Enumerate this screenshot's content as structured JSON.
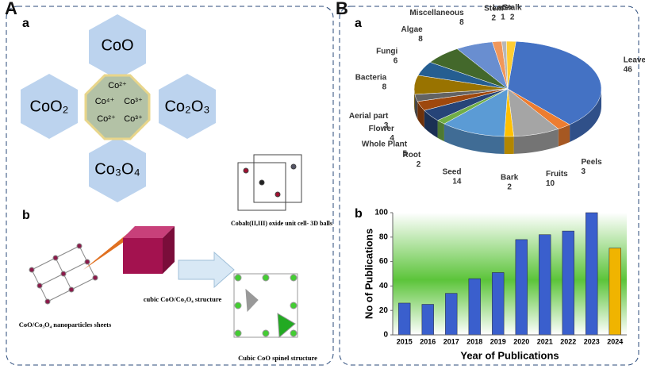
{
  "diagram": {
    "panel_labels": [
      "A",
      "B"
    ],
    "a": {
      "label": "a",
      "center_ions": [
        "Co²⁺",
        "Co⁴⁺",
        "Co³⁺",
        "Co²⁺",
        "Co³⁺"
      ],
      "oxides": [
        "CoO",
        "CoO₂",
        "Co₂O₃",
        "Co₃O₄"
      ]
    },
    "b": {
      "label": "b",
      "unit_cell": "Cobalt(II,III) oxide unit cell- 3D balls",
      "cube": "cubic CoO/Co₃O₄ structure",
      "sheets": "CoO/Co₃O₄ nanoparticles sheets",
      "spinel": "Cubic CoO spinel structure"
    }
  },
  "chart_data": [
    {
      "type": "pie",
      "label": "a",
      "categories": [
        "Leaves",
        "Peels",
        "Fruits",
        "Bark",
        "Seed",
        "Root",
        "Whole Plant",
        "Flower",
        "Aerial part",
        "Bacteria",
        "Fungi",
        "Algae",
        "Miscellaneous",
        "Stem",
        "Latex",
        "Stalk"
      ],
      "values": [
        46,
        3,
        10,
        2,
        14,
        2,
        5,
        4,
        3,
        8,
        6,
        8,
        8,
        2,
        1,
        2
      ],
      "colors": [
        "#4472c4",
        "#ed7d31",
        "#a5a5a5",
        "#ffc000",
        "#5b9bd5",
        "#70ad47",
        "#264478",
        "#9e480e",
        "#636363",
        "#997300",
        "#255e91",
        "#43682b",
        "#698ed0",
        "#f1975a",
        "#b7b7b7",
        "#ffcd33"
      ]
    },
    {
      "type": "bar",
      "label": "b",
      "categories": [
        "2015",
        "2016",
        "2017",
        "2018",
        "2019",
        "2020",
        "2021",
        "2022",
        "2023",
        "2024"
      ],
      "values": [
        26,
        25,
        34,
        46,
        51,
        78,
        82,
        85,
        100,
        71
      ],
      "colors": [
        "#3a5fcd",
        "#3a5fcd",
        "#3a5fcd",
        "#3a5fcd",
        "#3a5fcd",
        "#3a5fcd",
        "#3a5fcd",
        "#3a5fcd",
        "#3a5fcd",
        "#f0b400"
      ],
      "x_label": "Year of Publications",
      "y_label": "No of Publications",
      "ylim": [
        0,
        100
      ],
      "yticks": [
        0,
        20,
        40,
        60,
        80,
        100
      ]
    }
  ]
}
